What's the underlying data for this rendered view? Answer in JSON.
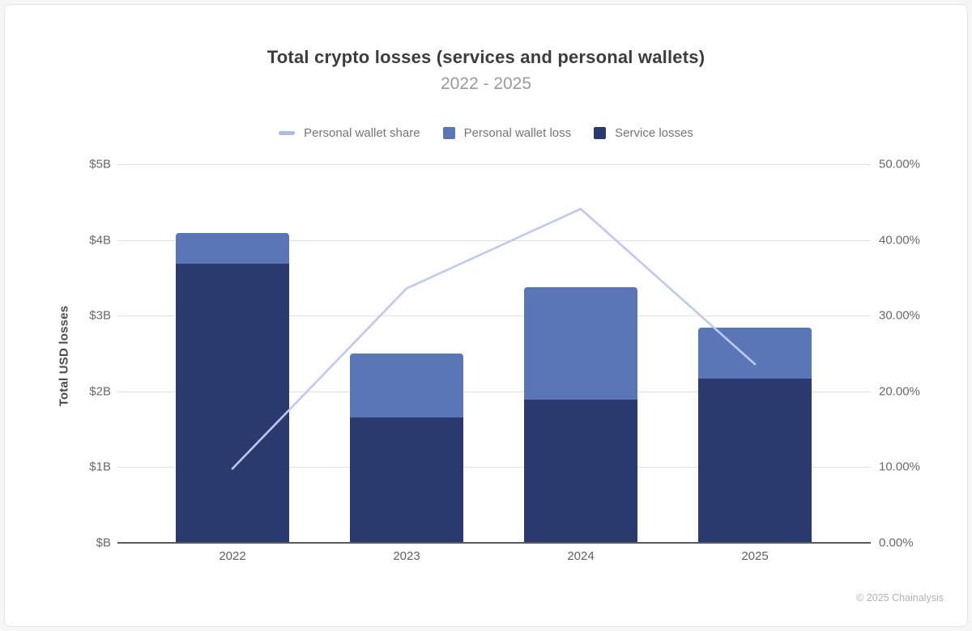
{
  "page": {
    "footer": "© 2025 Chainalysis"
  },
  "chart_data": {
    "type": "bar",
    "subtype": "stacked-bars-with-line-overlay",
    "title": "Total crypto losses (services and personal wallets)",
    "subtitle": "2022 - 2025",
    "categories": [
      "2022",
      "2023",
      "2024",
      "2025"
    ],
    "series": [
      {
        "name": "Service losses",
        "type": "bar",
        "axis": "left",
        "unit": "USD billions",
        "color": "#2b3a6e",
        "values": [
          3.69,
          1.66,
          1.89,
          2.17
        ]
      },
      {
        "name": "Personal wallet loss",
        "type": "bar",
        "axis": "left",
        "unit": "USD billions",
        "color": "#5b76b7",
        "values": [
          0.4,
          0.84,
          1.49,
          0.67
        ]
      },
      {
        "name": "Personal wallet share",
        "type": "line",
        "axis": "right",
        "unit": "percent",
        "color": "#bdc9ee",
        "values": [
          9.8,
          33.6,
          44.1,
          23.6
        ]
      }
    ],
    "stacked_totals_usd_billions": [
      4.09,
      2.5,
      3.38,
      2.84
    ],
    "legend": [
      {
        "label": "Personal wallet share",
        "swatch": "line",
        "color": "#a9bde8"
      },
      {
        "label": "Personal wallet loss",
        "swatch": "square",
        "color": "#5b76b7"
      },
      {
        "label": "Service losses",
        "swatch": "square",
        "color": "#2b3a6e"
      }
    ],
    "left_axis": {
      "label": "Total USD losses",
      "ticks": [
        "$5B",
        "$4B",
        "$3B",
        "$2B",
        "$1B",
        "$B"
      ],
      "range": [
        0,
        5
      ]
    },
    "right_axis": {
      "ticks": [
        "50.00%",
        "40.00%",
        "30.00%",
        "20.00%",
        "10.00%",
        "0.00%"
      ],
      "range": [
        0,
        50
      ]
    },
    "grid": true,
    "legend_position": "top",
    "colors": {
      "grid": "#e2e2e2",
      "axis_baseline": "#595959",
      "title_text": "#3d3d3d",
      "subtitle_text": "#9a9a9a",
      "tick_text": "#696969",
      "footer_text": "#b3b3b3"
    }
  }
}
